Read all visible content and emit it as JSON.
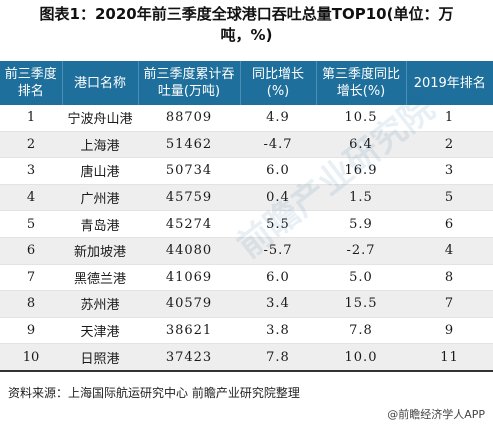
{
  "title_line1": "图表1：2020年前三季度全球港口吞吐总量TOP10(单位：万",
  "title_line2": "吨，%)",
  "headers": [
    "前三季度排名",
    "港口名称",
    "前三季度累计吞吐量(万吨)",
    "同比增长(%)",
    "第三季度同比增长(%)",
    "2019年排名"
  ],
  "rows": [
    [
      "1",
      "宁波舟山港",
      "88709",
      "4.9",
      "10.5",
      "1"
    ],
    [
      "2",
      "上海港",
      "51462",
      "-4.7",
      "6.4",
      "2"
    ],
    [
      "3",
      "唐山港",
      "50734",
      "6.0",
      "16.9",
      "3"
    ],
    [
      "4",
      "广州港",
      "45759",
      "0.4",
      "1.5",
      "5"
    ],
    [
      "5",
      "青岛港",
      "45274",
      "5.5",
      "5.9",
      "6"
    ],
    [
      "6",
      "新加坡港",
      "44080",
      "-5.7",
      "-2.7",
      "4"
    ],
    [
      "7",
      "黑德兰港",
      "41069",
      "6.0",
      "5.0",
      "8"
    ],
    [
      "8",
      "苏州港",
      "40579",
      "3.4",
      "15.5",
      "7"
    ],
    [
      "9",
      "天津港",
      "38621",
      "3.8",
      "7.8",
      "9"
    ],
    [
      "10",
      "日照港",
      "37423",
      "7.8",
      "10.0",
      "11"
    ]
  ],
  "watermark": "前瞻产业研究院",
  "source": "资料来源：上海国际航运研究中心 前瞻产业研究院整理",
  "brand": "@前瞻经济学人APP",
  "colors": {
    "header_bg": "#1e6f9c",
    "stripe": "#eeeeee"
  }
}
